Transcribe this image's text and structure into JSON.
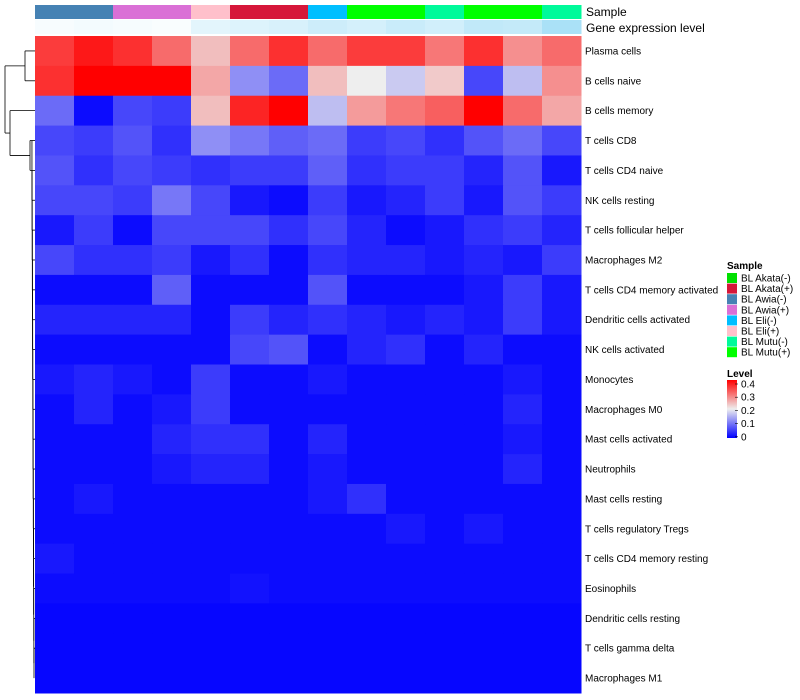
{
  "chart_data": {
    "type": "heatmap",
    "annotation_rows": [
      "Sample",
      "Gene expression level"
    ],
    "column_samples": [
      "BL Awia(-)",
      "BL Awia(-)",
      "BL Awia(+)",
      "BL Awia(+)",
      "BL Eli(+)",
      "BL Akata(+)",
      "BL Akata(+)",
      "BL Eli(-)",
      "BL Mutu(+)",
      "BL Mutu(+)",
      "BL Mutu(-)",
      "BL Mutu(+)",
      "BL Mutu(+)",
      "BL Mutu(-)"
    ],
    "gene_expression_level": [
      0.05,
      0.08,
      0.06,
      0.04,
      0.18,
      0.22,
      0.25,
      0.32,
      0.28,
      0.35,
      0.3,
      0.4,
      0.38,
      0.55
    ],
    "rows": [
      "Plasma cells",
      "B cells naive",
      "B cells memory",
      "T cells CD8",
      "T cells CD4 naive",
      "NK cells resting",
      "T cells follicular helper",
      "Macrophages M2",
      "T cells CD4 memory activated",
      "Dendritic cells activated",
      "NK cells activated",
      "Monocytes",
      "Macrophages M0",
      "Mast cells activated",
      "Neutrophils",
      "Mast cells resting",
      "T cells regulatory  Tregs",
      "T cells CD4 memory resting",
      "Eosinophils",
      "Dendritic cells resting",
      "T cells gamma delta",
      "Macrophages M1"
    ],
    "values": [
      [
        0.35,
        0.38,
        0.36,
        0.31,
        0.24,
        0.31,
        0.36,
        0.31,
        0.35,
        0.35,
        0.3,
        0.36,
        0.28,
        0.31
      ],
      [
        0.36,
        0.4,
        0.4,
        0.4,
        0.26,
        0.12,
        0.09,
        0.24,
        0.2,
        0.17,
        0.23,
        0.06,
        0.16,
        0.28
      ],
      [
        0.09,
        0.01,
        0.06,
        0.05,
        0.24,
        0.37,
        0.4,
        0.16,
        0.27,
        0.3,
        0.32,
        0.4,
        0.31,
        0.26
      ],
      [
        0.06,
        0.05,
        0.07,
        0.04,
        0.12,
        0.1,
        0.08,
        0.09,
        0.05,
        0.06,
        0.04,
        0.07,
        0.09,
        0.06
      ],
      [
        0.07,
        0.04,
        0.06,
        0.05,
        0.04,
        0.05,
        0.05,
        0.08,
        0.04,
        0.05,
        0.05,
        0.03,
        0.07,
        0.02
      ],
      [
        0.06,
        0.06,
        0.05,
        0.1,
        0.06,
        0.02,
        0.01,
        0.05,
        0.02,
        0.03,
        0.05,
        0.02,
        0.07,
        0.05
      ],
      [
        0.02,
        0.05,
        0.01,
        0.06,
        0.06,
        0.06,
        0.04,
        0.06,
        0.03,
        0.01,
        0.02,
        0.04,
        0.05,
        0.03
      ],
      [
        0.06,
        0.04,
        0.04,
        0.05,
        0.02,
        0.04,
        0.01,
        0.04,
        0.03,
        0.03,
        0.02,
        0.03,
        0.02,
        0.05
      ],
      [
        0.01,
        0.01,
        0.01,
        0.08,
        0.01,
        0.01,
        0.01,
        0.07,
        0.01,
        0.01,
        0.01,
        0.02,
        0.05,
        0.02
      ],
      [
        0.03,
        0.03,
        0.03,
        0.03,
        0.01,
        0.05,
        0.03,
        0.04,
        0.03,
        0.02,
        0.03,
        0.02,
        0.05,
        0.02
      ],
      [
        0.01,
        0.01,
        0.01,
        0.01,
        0.01,
        0.06,
        0.07,
        0.01,
        0.03,
        0.04,
        0.01,
        0.03,
        0.01,
        0.01
      ],
      [
        0.02,
        0.03,
        0.02,
        0.01,
        0.05,
        0.01,
        0.01,
        0.02,
        0.01,
        0.01,
        0.01,
        0.01,
        0.02,
        0.01
      ],
      [
        0.01,
        0.03,
        0.01,
        0.02,
        0.05,
        0.01,
        0.01,
        0.01,
        0.01,
        0.01,
        0.01,
        0.01,
        0.03,
        0.01
      ],
      [
        0.01,
        0.01,
        0.01,
        0.03,
        0.04,
        0.04,
        0.01,
        0.03,
        0.01,
        0.01,
        0.01,
        0.01,
        0.02,
        0.01
      ],
      [
        0.01,
        0.01,
        0.01,
        0.02,
        0.03,
        0.03,
        0.01,
        0.02,
        0.01,
        0.01,
        0.01,
        0.01,
        0.03,
        0.01
      ],
      [
        0.01,
        0.02,
        0.01,
        0.01,
        0.01,
        0.01,
        0.01,
        0.02,
        0.04,
        0.01,
        0.01,
        0.01,
        0.01,
        0.01
      ],
      [
        0.01,
        0.01,
        0.01,
        0.01,
        0.01,
        0.01,
        0.01,
        0.01,
        0.01,
        0.02,
        0.01,
        0.02,
        0.01,
        0.01
      ],
      [
        0.02,
        0.01,
        0.01,
        0.01,
        0.01,
        0.01,
        0.01,
        0.01,
        0.01,
        0.01,
        0.01,
        0.01,
        0.01,
        0.01
      ],
      [
        0.01,
        0.01,
        0.01,
        0.01,
        0.01,
        0.015,
        0.01,
        0.01,
        0.01,
        0.01,
        0.01,
        0.01,
        0.01,
        0.01
      ],
      [
        0.005,
        0.005,
        0.005,
        0.005,
        0.005,
        0.005,
        0.005,
        0.005,
        0.005,
        0.005,
        0.005,
        0.005,
        0.005,
        0.005
      ],
      [
        0.005,
        0.005,
        0.005,
        0.005,
        0.005,
        0.005,
        0.005,
        0.005,
        0.005,
        0.005,
        0.005,
        0.005,
        0.005,
        0.005
      ],
      [
        0.005,
        0.005,
        0.005,
        0.005,
        0.005,
        0.005,
        0.005,
        0.005,
        0.005,
        0.005,
        0.005,
        0.005,
        0.005,
        0.005
      ]
    ],
    "color_scale": {
      "min": 0,
      "mid": 0.2,
      "max": 0.4,
      "low_color": "#0000ff",
      "mid_color": "#eeeeee",
      "high_color": "#ff0000"
    },
    "legend_sample": {
      "title": "Sample",
      "entries": [
        {
          "label": "BL Akata(-)",
          "color": "#00e000"
        },
        {
          "label": "BL Akata(+)",
          "color": "#d6173a"
        },
        {
          "label": "BL Awia(-)",
          "color": "#4682b4"
        },
        {
          "label": "BL Awia(+)",
          "color": "#da70d6"
        },
        {
          "label": "BL Eli(-)",
          "color": "#00bfff"
        },
        {
          "label": "BL Eli(+)",
          "color": "#ffc0cb"
        },
        {
          "label": "BL Mutu(-)",
          "color": "#00fa9a"
        },
        {
          "label": "BL Mutu(+)",
          "color": "#00ff00"
        }
      ]
    },
    "legend_level": {
      "title": "Level",
      "ticks": [
        "0.4",
        "0.3",
        "0.2",
        "0.1",
        "0"
      ]
    },
    "dendrogram": "row clustering tree on the left side"
  }
}
